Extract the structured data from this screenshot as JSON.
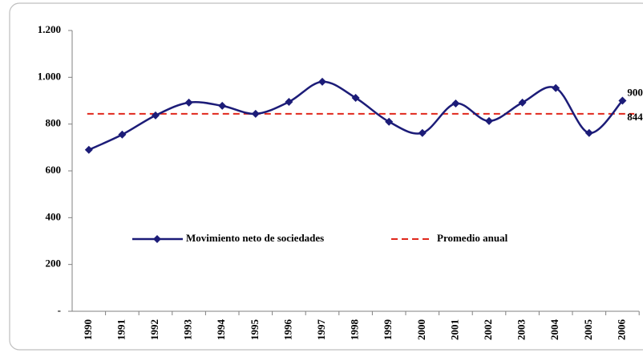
{
  "chart_data": {
    "type": "line",
    "categories": [
      "1990",
      "1991",
      "1992",
      "1993",
      "1994",
      "1995",
      "1996",
      "1997",
      "1998",
      "1999",
      "2000",
      "2001",
      "2002",
      "2003",
      "2004",
      "2005",
      "2006"
    ],
    "series": [
      {
        "name": "Movimiento neto de sociedades",
        "color": "#1c1c78",
        "values": [
          690,
          755,
          837,
          892,
          878,
          844,
          895,
          981,
          912,
          810,
          762,
          888,
          813,
          892,
          954,
          762,
          900
        ],
        "value_labels": [
          null,
          null,
          null,
          null,
          null,
          null,
          null,
          null,
          null,
          null,
          null,
          null,
          null,
          null,
          null,
          null,
          "900"
        ]
      }
    ],
    "average": {
      "name": "Promedio anual",
      "value": 844,
      "color": "#e0281c"
    },
    "ylim": [
      0,
      1200
    ],
    "yticks": [
      {
        "value": 0,
        "label": "-"
      },
      200,
      400,
      600,
      800,
      {
        "value": 1000,
        "label": "1.000"
      },
      {
        "value": 1200,
        "label": "1.200"
      }
    ],
    "legend": "center"
  }
}
